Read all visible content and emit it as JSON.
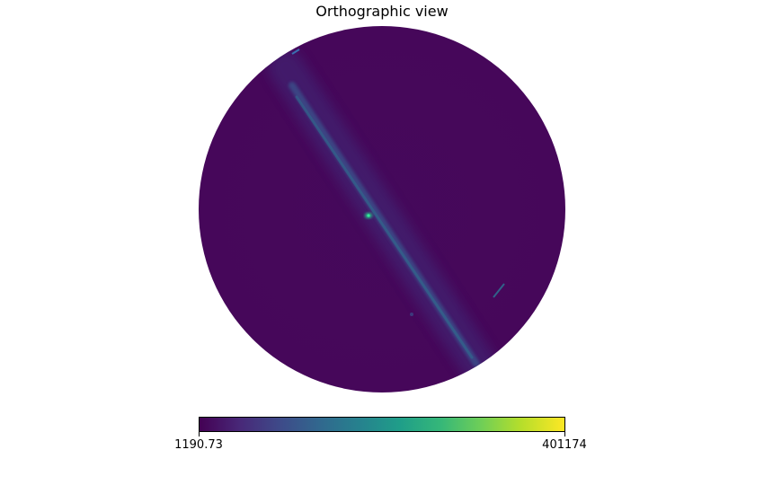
{
  "title": "Orthographic view",
  "colormap": {
    "name": "viridis",
    "min_label": "1190.73",
    "max_label": "401174",
    "stops": [
      "#440154",
      "#482878",
      "#3e4a89",
      "#31688e",
      "#26828e",
      "#1f9e89",
      "#35b779",
      "#6ece58",
      "#b5de2b",
      "#fde725"
    ]
  },
  "background_color": "#440154",
  "band_color": "#3b4f8a",
  "core_color": "#20c98a"
}
